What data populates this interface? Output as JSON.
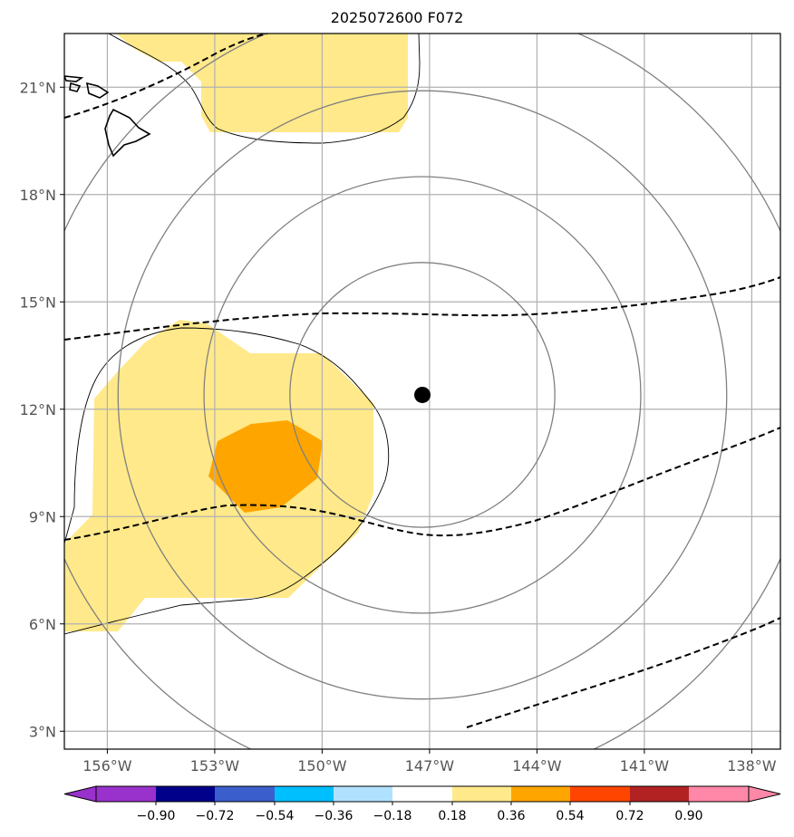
{
  "title": "2025072600 F072",
  "map": {
    "lon_range": [
      -157.2,
      -137.2
    ],
    "lat_range": [
      2.5,
      22.5
    ],
    "lon_ticks": [
      {
        "value": -156,
        "label": "156°W"
      },
      {
        "value": -153,
        "label": "153°W"
      },
      {
        "value": -150,
        "label": "150°W"
      },
      {
        "value": -147,
        "label": "147°W"
      },
      {
        "value": -144,
        "label": "144°W"
      },
      {
        "value": -141,
        "label": "141°W"
      },
      {
        "value": -138,
        "label": "138°W"
      }
    ],
    "lat_ticks": [
      {
        "value": 3,
        "label": "3°N"
      },
      {
        "value": 6,
        "label": "6°N"
      },
      {
        "value": 9,
        "label": "9°N"
      },
      {
        "value": 12,
        "label": "12°N"
      },
      {
        "value": 15,
        "label": "15°N"
      },
      {
        "value": 18,
        "label": "18°N"
      },
      {
        "value": 21,
        "label": "21°N"
      }
    ],
    "grid": true,
    "storm_center": {
      "lon": -147.2,
      "lat": 12.4
    },
    "range_rings_deg": [
      3.7,
      6.1,
      8.5,
      11.0
    ],
    "colors": {
      "fill_018_036": "#ffe98a",
      "fill_036_054": "#ffa500",
      "grid": "#b0b0b0",
      "rings": "#808080",
      "dashed": "#000000",
      "coast": "#000000"
    }
  },
  "colorbar": {
    "levels": [
      "−0.90",
      "−0.72",
      "−0.54",
      "−0.36",
      "−0.18",
      "0.18",
      "0.36",
      "0.54",
      "0.72",
      "0.90"
    ],
    "colors": [
      "#9932cc",
      "#00008b",
      "#3a5fcd",
      "#00bfff",
      "#b0e2ff",
      "#ffffff",
      "#ffe98a",
      "#ffa500",
      "#ff4500",
      "#b22222",
      "#ff88a8"
    ]
  }
}
